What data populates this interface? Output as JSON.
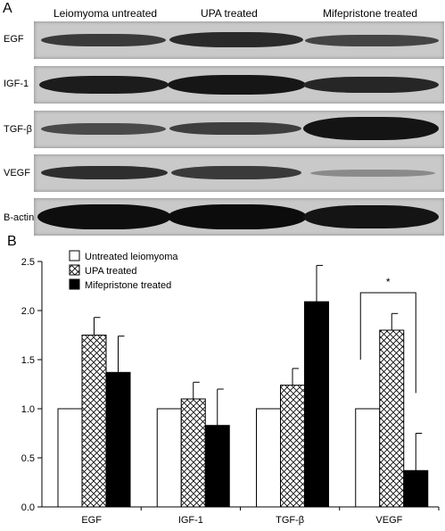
{
  "panel_a": {
    "letter": "A",
    "columns": [
      "Leiomyoma untreated",
      "UPA treated",
      "Mifepristone treated"
    ],
    "rows": [
      "EGF",
      "IGF-1",
      "TGF-β",
      "VEGF",
      "B-actin"
    ]
  },
  "panel_b": {
    "letter": "B"
  },
  "chart_data": {
    "type": "bar",
    "categories": [
      "EGF",
      "IGF-1",
      "TGF-β",
      "VEGF"
    ],
    "series": [
      {
        "name": "Untreated leiomyoma",
        "values": [
          1.0,
          1.0,
          1.0,
          1.0
        ],
        "errors": [
          0,
          0,
          0,
          0
        ],
        "fill": "#ffffff"
      },
      {
        "name": "UPA treated",
        "values": [
          1.75,
          1.1,
          1.24,
          1.8
        ],
        "errors": [
          0.18,
          0.17,
          0.17,
          0.17
        ],
        "fill": "crosshatch"
      },
      {
        "name": "Mifepristone treated",
        "values": [
          1.37,
          0.83,
          2.09,
          0.37
        ],
        "errors": [
          0.37,
          0.37,
          0.37,
          0.38
        ],
        "fill": "#000000"
      }
    ],
    "yticks": [
      "0.0",
      "0.5",
      "1.0",
      "1.5",
      "2.0",
      "2.5"
    ],
    "ylim": [
      0,
      2.5
    ],
    "annotation": "*",
    "legend_position": "top-left",
    "grid": false
  }
}
